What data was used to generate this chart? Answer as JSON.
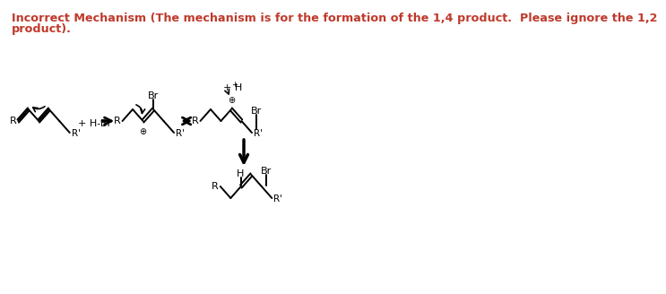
{
  "title_line1": "Incorrect Mechanism (The mechanism is for the formation of the 1,4 product.  Please ignore the 1,2",
  "title_line2": "product).",
  "title_color": "#c0392b",
  "title_fontsize": 9.2,
  "bg_color": "#ffffff",
  "fig_width": 6.37,
  "fig_height": 3.08,
  "black": "#000000"
}
